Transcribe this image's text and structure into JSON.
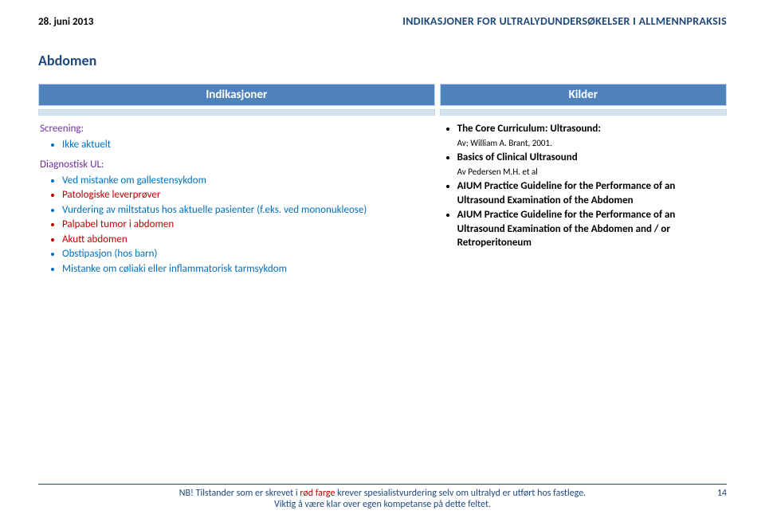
{
  "header": {
    "date": "28. juni 2013",
    "title": "INDIKASJONER FOR ULTRALYDUNDERSØKELSER I ALLMENNPRAKSIS"
  },
  "section_title": "Abdomen",
  "columns": {
    "left_label": "Indikasjoner",
    "right_label": "Kilder"
  },
  "left": {
    "screening_head": "Screening:",
    "screening_items": [
      {
        "text": "Ikke aktuelt",
        "color": "#0070c0"
      }
    ],
    "diag_head": "Diagnostisk UL:",
    "diag_items": [
      {
        "text": "Ved mistanke om gallestensykdom",
        "color": "#0070c0"
      },
      {
        "text": "Patologiske leverprøver",
        "color": "#c00000"
      },
      {
        "text": "Vurdering av miltstatus hos aktuelle pasienter (f.eks. ved mononukleose)",
        "color": "#0070c0"
      },
      {
        "text": "Palpabel tumor i abdomen",
        "color": "#c00000"
      },
      {
        "text": "Akutt abdomen",
        "color": "#c00000"
      },
      {
        "text": "Obstipasjon (hos barn)",
        "color": "#0070c0"
      },
      {
        "text": "Mistanke om cøliaki eller inflammatorisk tarmsykdom",
        "color": "#0070c0"
      }
    ]
  },
  "right": {
    "sources": [
      {
        "main": "The Core Curriculum: Ultrasound:",
        "sub": "Av; William A. Brant, 2001.",
        "bold": true
      },
      {
        "main": "Basics of Clinical Ultrasound",
        "sub": "Av Pedersen M.H. et al",
        "bold": true
      },
      {
        "main": "AIUM Practice Guideline for the Performance of an Ultrasound Examination of the Abdomen",
        "sub": "",
        "bold": true
      },
      {
        "main": "AIUM Practice Guideline for the Performance of an Ultrasound Examination of the Abdomen and / or Retroperitoneum",
        "sub": "",
        "bold": true
      }
    ]
  },
  "footer": {
    "line1_pre": "NB! Tilstander som er skrevet i ",
    "line1_red": "rød farge",
    "line1_post": " krever spesialistvurdering selv om ultralyd er utført hos fastlege.",
    "line2": "Viktig å være klar over egen kompetanse på dette feltet.",
    "page": "14"
  },
  "style": {
    "header_blue": "#1f497d",
    "table_header_bg": "#4f81bd",
    "table_header_fg": "#ffffff",
    "thin_bar_bg": "#d6e2f0",
    "purple": "#7030a0",
    "blue_text": "#0070c0",
    "red_text": "#c00000"
  }
}
